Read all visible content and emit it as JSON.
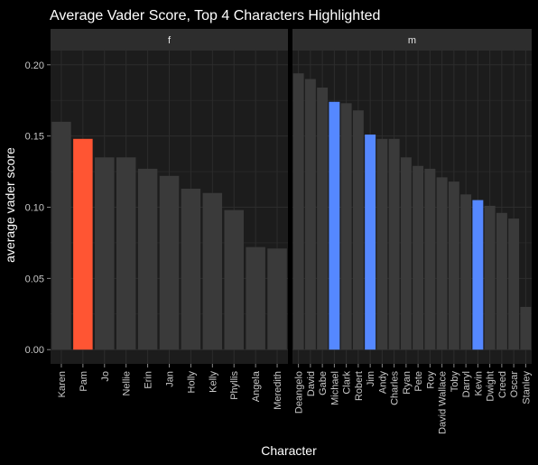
{
  "chart_data": {
    "type": "bar",
    "title": "Average Vader Score, Top 4 Characters Highlighted",
    "xlabel": "Character",
    "ylabel": "average vader score",
    "ylim": [
      -0.01,
      0.21
    ],
    "yticks": [
      0.0,
      0.05,
      0.1,
      0.15,
      0.2
    ],
    "ytick_labels": [
      "0.00",
      "0.05",
      "0.10",
      "0.15",
      "0.20"
    ],
    "grid": true,
    "legend": "none",
    "colors": {
      "background": "#000000",
      "panel": "#1c1c1c",
      "grid": "#2c2c2c",
      "strip": "#2d2d2d",
      "bar": "#3a3a3a",
      "highlight_f": "#ff5533",
      "highlight_m": "#5588ff"
    },
    "facets": [
      {
        "label": "f",
        "categories": [
          "Karen",
          "Pam",
          "Jo",
          "Nellie",
          "Erin",
          "Jan",
          "Holly",
          "Kelly",
          "Phyllis",
          "Angela",
          "Meredith"
        ],
        "values": [
          0.16,
          0.148,
          0.135,
          0.135,
          0.127,
          0.122,
          0.113,
          0.11,
          0.098,
          0.072,
          0.071
        ],
        "highlighted": [
          "Pam"
        ]
      },
      {
        "label": "m",
        "categories": [
          "Deangelo",
          "David",
          "Gabe",
          "Michael",
          "Clark",
          "Robert",
          "Jim",
          "Andy",
          "Charles",
          "Ryan",
          "Pete",
          "Roy",
          "David Wallace",
          "Toby",
          "Darryl",
          "Kevin",
          "Dwight",
          "Creed",
          "Oscar",
          "Stanley"
        ],
        "values": [
          0.194,
          0.19,
          0.184,
          0.174,
          0.173,
          0.168,
          0.151,
          0.148,
          0.148,
          0.135,
          0.129,
          0.127,
          0.121,
          0.118,
          0.109,
          0.105,
          0.101,
          0.096,
          0.092,
          0.03
        ],
        "highlighted": [
          "Michael",
          "Jim",
          "Kevin"
        ]
      }
    ]
  }
}
